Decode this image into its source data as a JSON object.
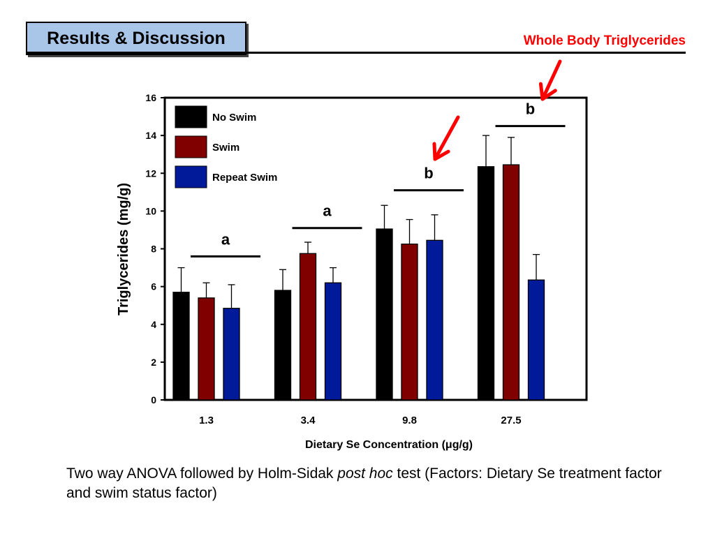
{
  "header": {
    "title": "Results & Discussion",
    "subtitle": "Whole Body Triglycerides"
  },
  "caption": {
    "before": "Two way ANOVA followed by Holm-Sidak ",
    "italic": "post hoc",
    "after": " test (Factors: Dietary Se treatment factor and swim status factor)"
  },
  "colors": {
    "subtitle": "#ff0000",
    "arrow": "#ff0000",
    "title_box_bg": "#a9c5e8"
  },
  "chart_data": {
    "type": "bar",
    "categories": [
      "1.3",
      "3.4",
      "9.8",
      "27.5"
    ],
    "series": [
      {
        "name": "No Swim",
        "color": "#000000",
        "values": [
          5.7,
          5.8,
          9.05,
          12.35
        ],
        "errors": [
          1.3,
          1.1,
          1.25,
          1.65
        ]
      },
      {
        "name": "Swim",
        "color": "#800000",
        "values": [
          5.4,
          7.75,
          8.25,
          12.45
        ],
        "errors": [
          0.8,
          0.6,
          1.3,
          1.45
        ]
      },
      {
        "name": "Repeat Swim",
        "color": "#001a99",
        "values": [
          4.85,
          6.2,
          8.45,
          6.35
        ],
        "errors": [
          1.25,
          0.8,
          1.35,
          1.35
        ]
      }
    ],
    "ylabel": "Triglycerides (mg/g)",
    "xlabel": "Dietary Se Concentration (μg/g)",
    "ylim": [
      0,
      16
    ],
    "yticks": [
      0,
      2,
      4,
      6,
      8,
      10,
      12,
      14,
      16
    ],
    "significance": [
      {
        "label": "a",
        "category": "1.3",
        "line_y": 7.6
      },
      {
        "label": "a",
        "category": "3.4",
        "line_y": 9.1
      },
      {
        "label": "b",
        "category": "9.8",
        "line_y": 11.1
      },
      {
        "label": "b",
        "category": "27.5",
        "line_y": 14.5
      }
    ],
    "arrows_point_to": [
      "b",
      "b"
    ],
    "legend_position": "top-left",
    "grid": false
  }
}
